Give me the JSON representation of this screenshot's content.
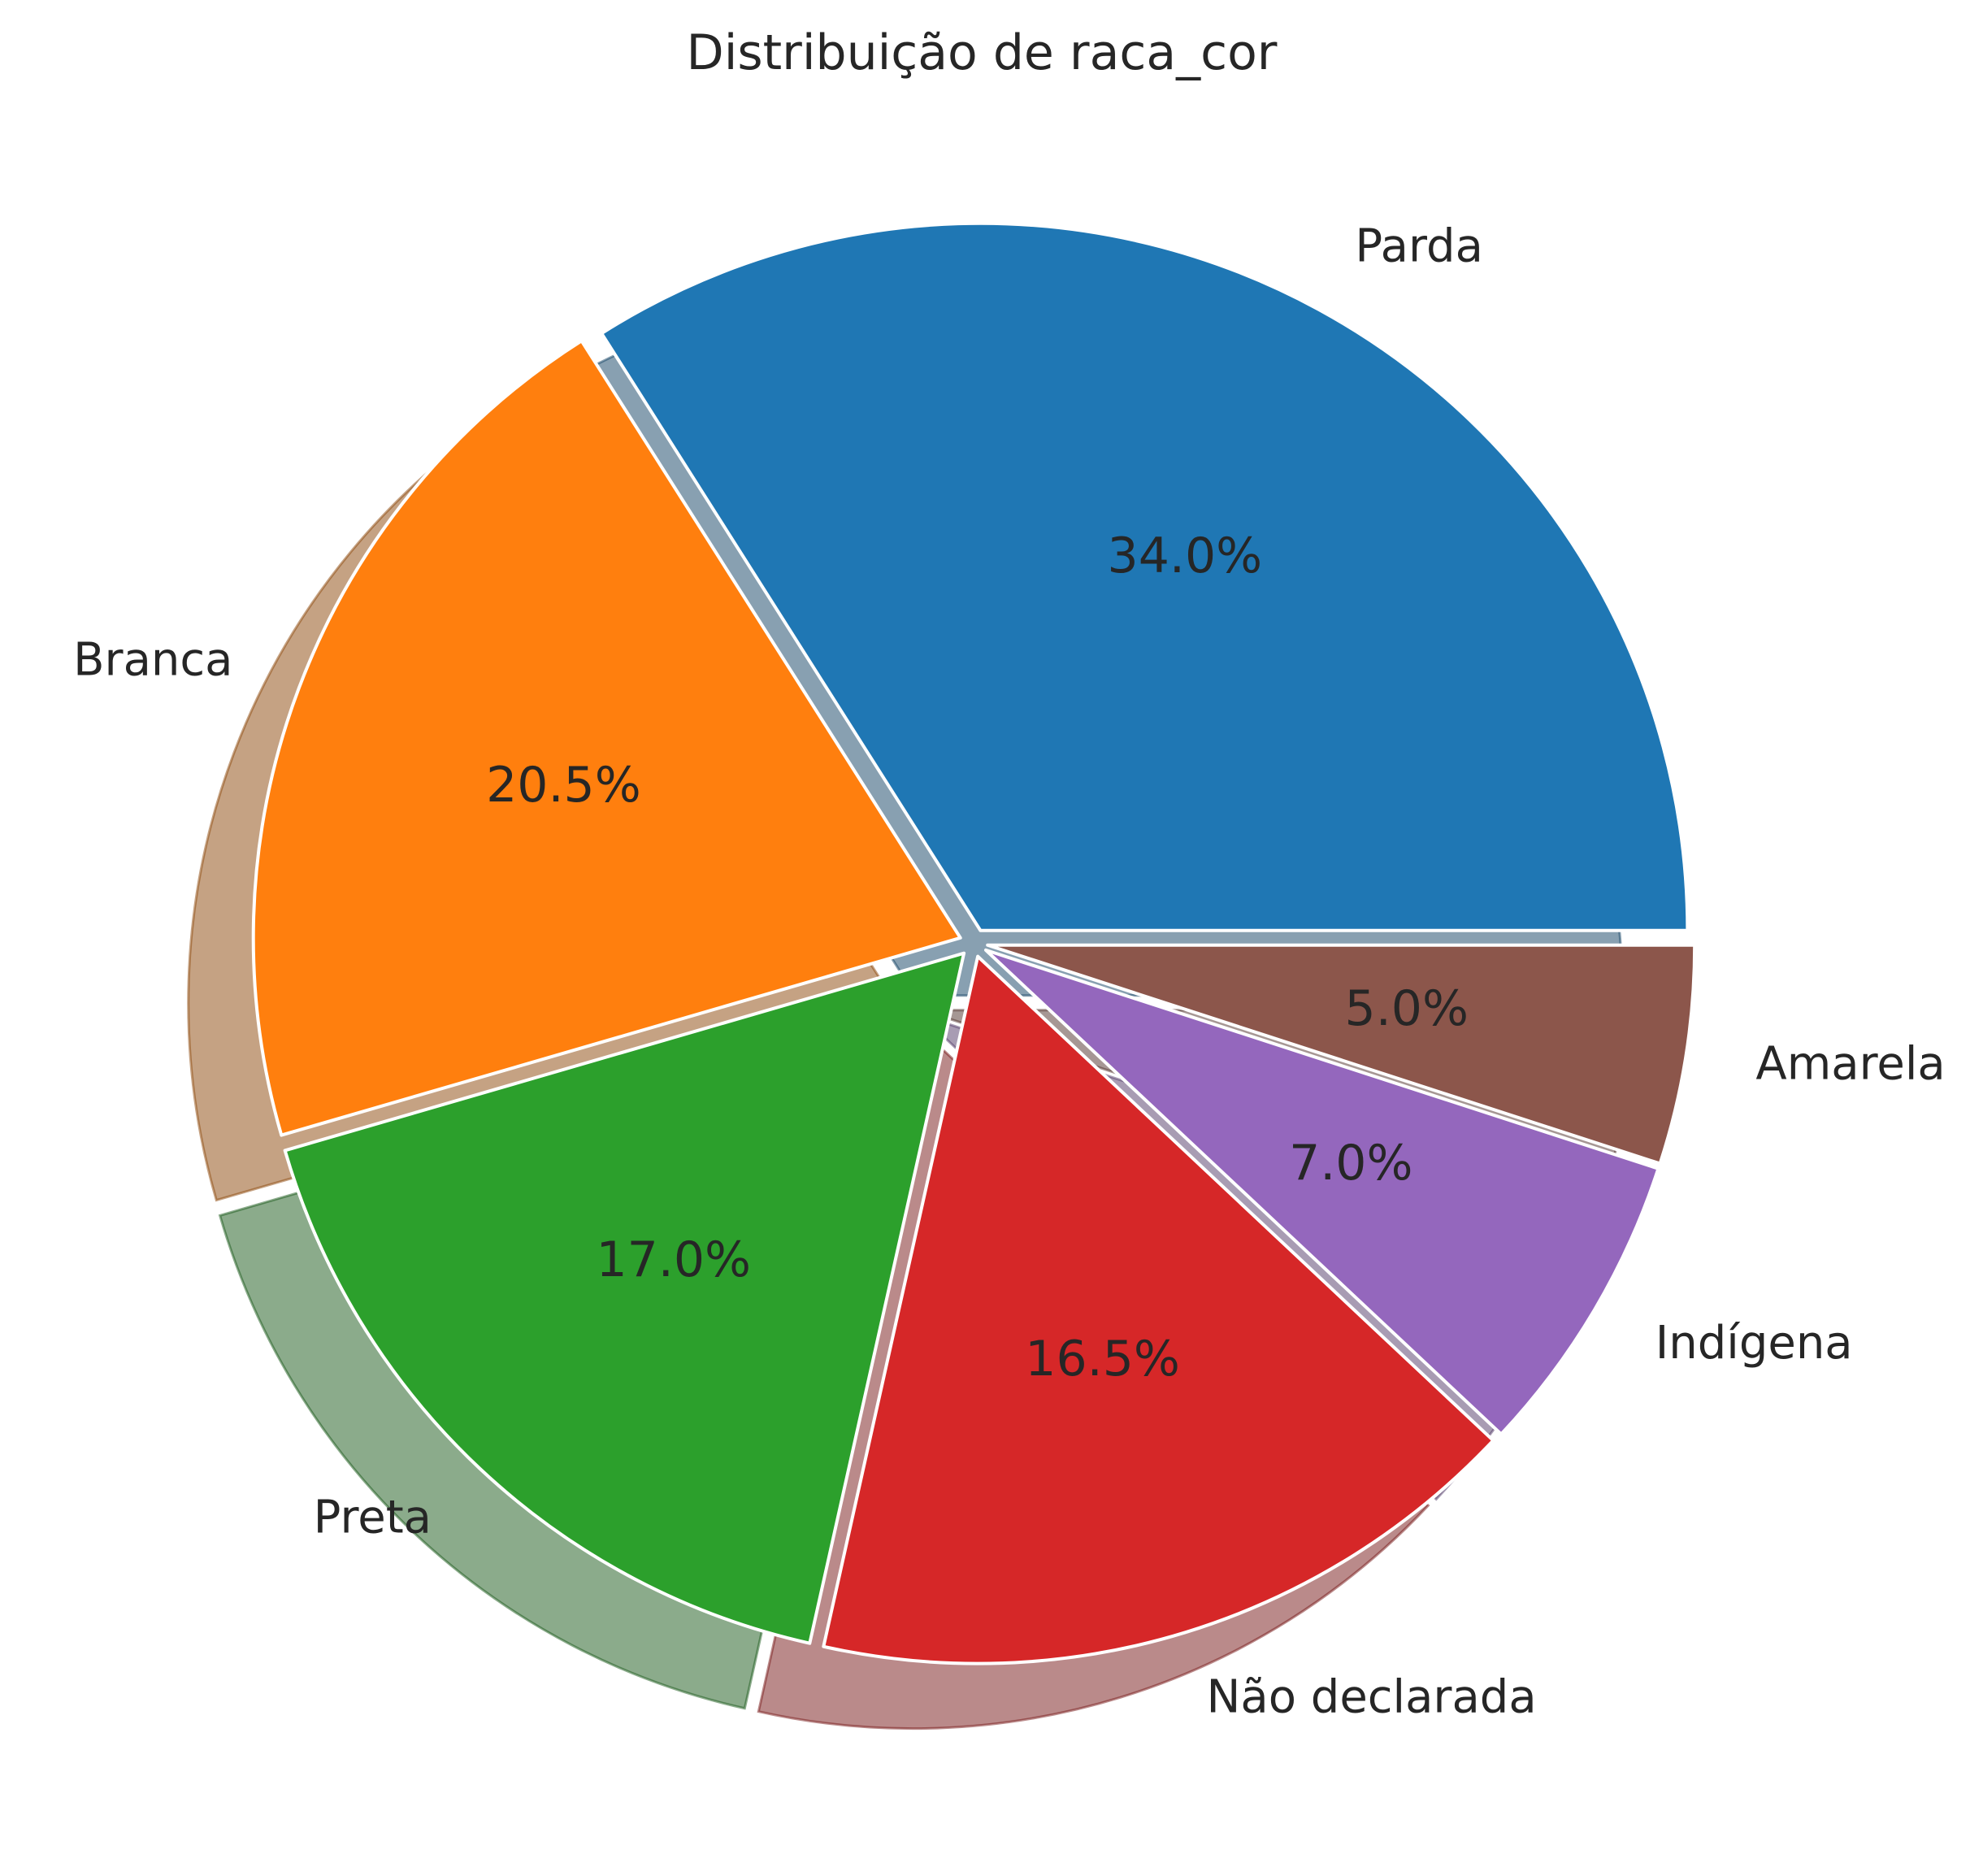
{
  "chart_data": {
    "type": "pie",
    "title": "Distribuição de raca_cor",
    "categories": [
      "Parda",
      "Branca",
      "Preta",
      "Não declarada",
      "Indígena",
      "Amarela"
    ],
    "values": [
      34.0,
      20.5,
      17.0,
      16.5,
      7.0,
      5.0
    ],
    "value_labels": [
      "34.0%",
      "20.5%",
      "17.0%",
      "16.5%",
      "7.0%",
      "5.0%"
    ],
    "colors": [
      "#1f77b4",
      "#ff7f0e",
      "#2ca02c",
      "#d62728",
      "#9467bd",
      "#8c564b"
    ],
    "start_angle_deg": 0,
    "direction": "counterclockwise",
    "exploded": true,
    "shadow": true,
    "legend": "none"
  }
}
